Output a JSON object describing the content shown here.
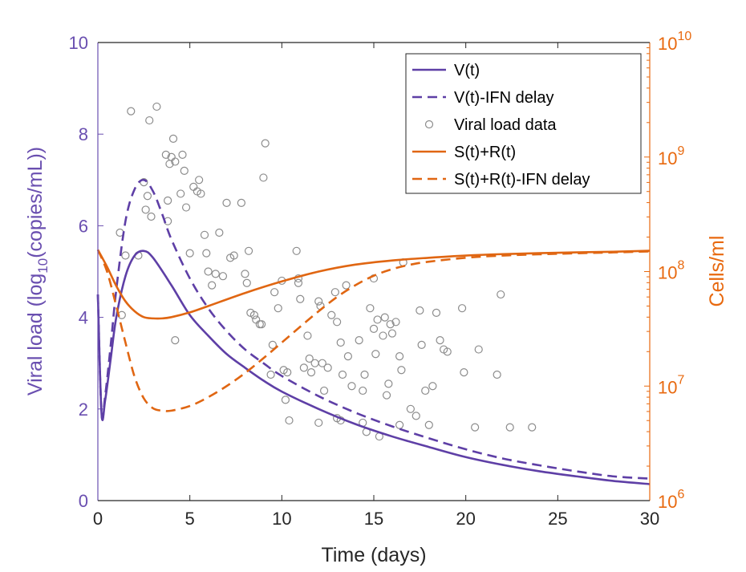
{
  "chart_data": {
    "type": "line",
    "xlabel": "Time (days)",
    "ylabel_left": "Viral load (log",
    "ylabel_left_sub": "10",
    "ylabel_left_tail": "(copies/mL))",
    "ylabel_right": "Cells/ml",
    "xlim": [
      0,
      30
    ],
    "ylim_left": [
      0,
      10
    ],
    "ylim_right": [
      1000000,
      10000000000
    ],
    "right_scale": "log",
    "x_ticks": [
      "0",
      "5",
      "10",
      "15",
      "20",
      "25",
      "30"
    ],
    "y_ticks_left": [
      "0",
      "2",
      "4",
      "6",
      "8",
      "10"
    ],
    "y_ticks_right": [
      {
        "base": "10",
        "exp": "6"
      },
      {
        "base": "10",
        "exp": "7"
      },
      {
        "base": "10",
        "exp": "8"
      },
      {
        "base": "10",
        "exp": "9"
      },
      {
        "base": "10",
        "exp": "10"
      }
    ],
    "legend_position": "top-right",
    "colors": {
      "left_axis": "#6a4fb0",
      "right_axis": "#e8690f",
      "viral": "#5e3fa6",
      "cells": "#e06612",
      "data_marker": "#8c8c8c"
    },
    "series": [
      {
        "name": "V(t)",
        "axis": "left",
        "style": "solid",
        "x": [
          0,
          0.2,
          0.4,
          0.7,
          1,
          1.5,
          2,
          2.5,
          3,
          4,
          5,
          6,
          7,
          8,
          9,
          10,
          12,
          14,
          16,
          18,
          20,
          22,
          24,
          26,
          28,
          30
        ],
        "y": [
          4.5,
          1.9,
          2.2,
          3.1,
          4.0,
          4.9,
          5.35,
          5.45,
          5.3,
          4.7,
          4.05,
          3.6,
          3.2,
          2.9,
          2.62,
          2.38,
          2.0,
          1.67,
          1.4,
          1.17,
          0.95,
          0.78,
          0.64,
          0.53,
          0.43,
          0.36
        ]
      },
      {
        "name": "V(t)-IFN delay",
        "axis": "left",
        "style": "dashed",
        "x": [
          0,
          0.2,
          0.4,
          0.7,
          1,
          1.5,
          2,
          2.5,
          3,
          3.5,
          4,
          5,
          6,
          7,
          8,
          9,
          10,
          12,
          14,
          16,
          18,
          20,
          22,
          24,
          26,
          28,
          30
        ],
        "y": [
          4.5,
          1.9,
          2.3,
          3.4,
          4.6,
          6.1,
          6.8,
          7.0,
          6.75,
          6.25,
          5.7,
          4.85,
          4.2,
          3.7,
          3.3,
          3.0,
          2.72,
          2.28,
          1.92,
          1.62,
          1.36,
          1.12,
          0.92,
          0.77,
          0.64,
          0.53,
          0.48
        ]
      },
      {
        "name": "S(t)+R(t)",
        "axis": "right",
        "style": "solid",
        "x": [
          0,
          0.5,
          1,
          1.5,
          2,
          2.5,
          3,
          3.5,
          4,
          5,
          6,
          8,
          10,
          12,
          14,
          16,
          18,
          20,
          22,
          25,
          28,
          30
        ],
        "y": [
          155000000.0,
          110000000.0,
          75000000.0,
          55000000.0,
          45000000.0,
          40000000.0,
          39000000.0,
          39000000.0,
          40000000.0,
          44000000.0,
          50000000.0,
          65000000.0,
          82000000.0,
          100000000.0,
          115000000.0,
          125000000.0,
          132000000.0,
          138000000.0,
          142000000.0,
          146000000.0,
          149000000.0,
          152000000.0
        ]
      },
      {
        "name": "S(t)+R(t)-IFN delay",
        "axis": "right",
        "style": "dashed",
        "x": [
          0,
          0.5,
          1,
          1.5,
          2,
          2.5,
          3,
          3.5,
          4,
          5,
          6,
          7,
          8,
          9,
          10,
          11,
          12,
          13,
          14,
          15,
          16,
          17,
          18,
          20,
          22,
          25,
          28,
          30
        ],
        "y": [
          155000000.0,
          100000000.0,
          50000000.0,
          24000000.0,
          12000000.0,
          7800000.0,
          6400000.0,
          6100000.0,
          6100000.0,
          6700000.0,
          8000000.0,
          10000000.0,
          13000000.0,
          17500000.0,
          24000000.0,
          33000000.0,
          45000000.0,
          60000000.0,
          76000000.0,
          92000000.0,
          105000000.0,
          115000000.0,
          122000000.0,
          132000000.0,
          138000000.0,
          143000000.0,
          147000000.0,
          150000000.0
        ]
      }
    ],
    "scatter": {
      "name": "Viral load data",
      "axis": "left",
      "points": [
        [
          1.2,
          5.85
        ],
        [
          1.5,
          5.35
        ],
        [
          1.3,
          4.05
        ],
        [
          1.8,
          8.5
        ],
        [
          2.2,
          5.35
        ],
        [
          2.5,
          6.95
        ],
        [
          2.7,
          6.65
        ],
        [
          2.6,
          6.35
        ],
        [
          2.8,
          8.3
        ],
        [
          2.9,
          6.2
        ],
        [
          3.2,
          8.6
        ],
        [
          3.8,
          6.1
        ],
        [
          3.8,
          6.55
        ],
        [
          3.7,
          7.55
        ],
        [
          3.9,
          7.35
        ],
        [
          4.0,
          7.5
        ],
        [
          4.2,
          7.4
        ],
        [
          4.1,
          7.9
        ],
        [
          4.2,
          3.5
        ],
        [
          4.6,
          7.55
        ],
        [
          4.7,
          7.2
        ],
        [
          4.5,
          6.7
        ],
        [
          4.8,
          6.4
        ],
        [
          5.0,
          5.4
        ],
        [
          5.2,
          6.85
        ],
        [
          5.4,
          6.75
        ],
        [
          5.6,
          6.7
        ],
        [
          5.5,
          7.0
        ],
        [
          5.8,
          5.8
        ],
        [
          5.9,
          5.4
        ],
        [
          6.0,
          5.0
        ],
        [
          6.2,
          4.7
        ],
        [
          6.4,
          4.95
        ],
        [
          6.6,
          5.85
        ],
        [
          6.8,
          4.9
        ],
        [
          7.0,
          6.5
        ],
        [
          7.2,
          5.3
        ],
        [
          7.4,
          5.35
        ],
        [
          7.8,
          6.5
        ],
        [
          8.0,
          4.95
        ],
        [
          8.1,
          4.75
        ],
        [
          8.2,
          5.45
        ],
        [
          8.3,
          4.1
        ],
        [
          8.5,
          4.05
        ],
        [
          8.6,
          3.95
        ],
        [
          8.8,
          3.85
        ],
        [
          8.9,
          3.85
        ],
        [
          9.0,
          7.05
        ],
        [
          9.1,
          7.8
        ],
        [
          9.4,
          2.75
        ],
        [
          9.5,
          3.4
        ],
        [
          9.6,
          4.55
        ],
        [
          9.8,
          4.2
        ],
        [
          10.0,
          4.8
        ],
        [
          10.1,
          2.85
        ],
        [
          10.2,
          2.2
        ],
        [
          10.3,
          2.8
        ],
        [
          10.4,
          1.75
        ],
        [
          10.8,
          5.45
        ],
        [
          10.9,
          4.75
        ],
        [
          10.9,
          4.85
        ],
        [
          11.0,
          4.4
        ],
        [
          11.2,
          2.9
        ],
        [
          11.4,
          3.6
        ],
        [
          11.5,
          3.1
        ],
        [
          11.6,
          2.8
        ],
        [
          11.8,
          3.0
        ],
        [
          12.0,
          4.35
        ],
        [
          12.1,
          4.25
        ],
        [
          12.2,
          3.0
        ],
        [
          12.3,
          2.4
        ],
        [
          12.0,
          1.7
        ],
        [
          12.5,
          2.9
        ],
        [
          12.7,
          4.05
        ],
        [
          12.9,
          4.55
        ],
        [
          13.0,
          3.9
        ],
        [
          13.2,
          3.45
        ],
        [
          13.3,
          2.75
        ],
        [
          13.5,
          4.7
        ],
        [
          13.6,
          3.15
        ],
        [
          13.8,
          2.5
        ],
        [
          13.2,
          1.75
        ],
        [
          14.2,
          3.5
        ],
        [
          14.4,
          2.4
        ],
        [
          14.5,
          2.75
        ],
        [
          14.6,
          1.5
        ],
        [
          14.8,
          4.2
        ],
        [
          15.0,
          4.85
        ],
        [
          15.0,
          3.75
        ],
        [
          15.1,
          3.2
        ],
        [
          15.2,
          3.95
        ],
        [
          15.3,
          1.4
        ],
        [
          15.5,
          3.6
        ],
        [
          15.6,
          4.0
        ],
        [
          15.7,
          2.3
        ],
        [
          15.8,
          2.55
        ],
        [
          15.9,
          3.85
        ],
        [
          16.0,
          3.65
        ],
        [
          16.2,
          3.9
        ],
        [
          16.4,
          3.15
        ],
        [
          16.5,
          2.85
        ],
        [
          16.6,
          5.2
        ],
        [
          16.4,
          1.65
        ],
        [
          17.0,
          2.0
        ],
        [
          17.3,
          1.85
        ],
        [
          17.5,
          4.15
        ],
        [
          17.6,
          3.4
        ],
        [
          17.8,
          2.4
        ],
        [
          18.0,
          1.65
        ],
        [
          18.2,
          2.5
        ],
        [
          18.4,
          4.1
        ],
        [
          18.6,
          3.5
        ],
        [
          18.8,
          3.3
        ],
        [
          19.0,
          3.25
        ],
        [
          19.8,
          4.2
        ],
        [
          19.9,
          2.8
        ],
        [
          20.5,
          1.6
        ],
        [
          20.7,
          3.3
        ],
        [
          21.7,
          2.75
        ],
        [
          21.9,
          4.5
        ],
        [
          22.4,
          1.6
        ],
        [
          23.6,
          1.6
        ],
        [
          14.4,
          1.7
        ],
        [
          13.0,
          1.8
        ]
      ]
    }
  }
}
